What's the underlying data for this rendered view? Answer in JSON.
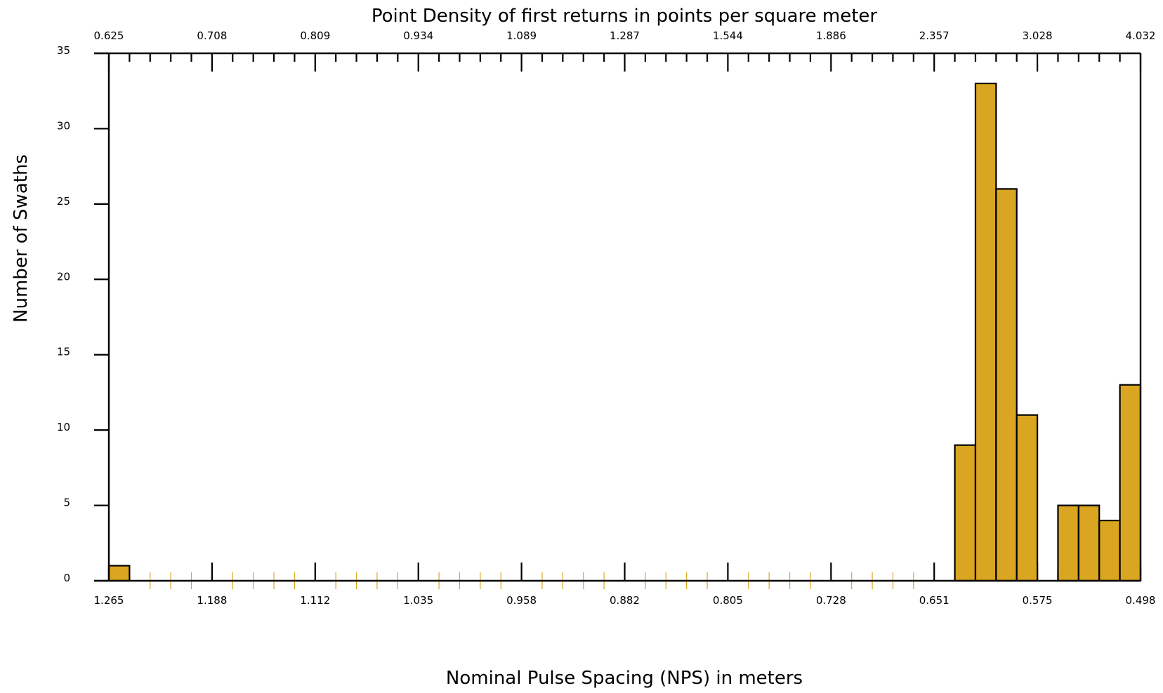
{
  "chart_data": {
    "type": "bar",
    "title": "Point Density of first returns in points per square meter",
    "xlabel": "Nominal Pulse Spacing (NPS) in meters",
    "ylabel": "Number of Swaths",
    "bin_count": 50,
    "ylim": [
      0,
      35
    ],
    "yticks": [
      "0",
      "5",
      "10",
      "15",
      "20",
      "25",
      "30",
      "35"
    ],
    "bottom_tick_labels": [
      "1.265",
      "1.188",
      "1.112",
      "1.035",
      "0.958",
      "0.882",
      "0.805",
      "0.728",
      "0.651",
      "0.575",
      "0.498"
    ],
    "top_tick_labels": [
      "0.625",
      "0.708",
      "0.809",
      "0.934",
      "1.089",
      "1.287",
      "1.544",
      "1.886",
      "2.357",
      "3.028",
      "4.032"
    ],
    "x_range_nps": [
      1.265,
      0.498
    ],
    "bins": [
      {
        "bin": 0,
        "count": 1
      },
      {
        "bin": 41,
        "count": 9
      },
      {
        "bin": 42,
        "count": 33
      },
      {
        "bin": 43,
        "count": 26
      },
      {
        "bin": 44,
        "count": 11
      },
      {
        "bin": 46,
        "count": 5
      },
      {
        "bin": 47,
        "count": 5
      },
      {
        "bin": 48,
        "count": 4
      },
      {
        "bin": 49,
        "count": 13
      }
    ],
    "bar_color": "#DAA520",
    "empty_bin_tick_color": "#DAA520",
    "axis_color": "#000000",
    "grid": false,
    "legend": "none"
  }
}
